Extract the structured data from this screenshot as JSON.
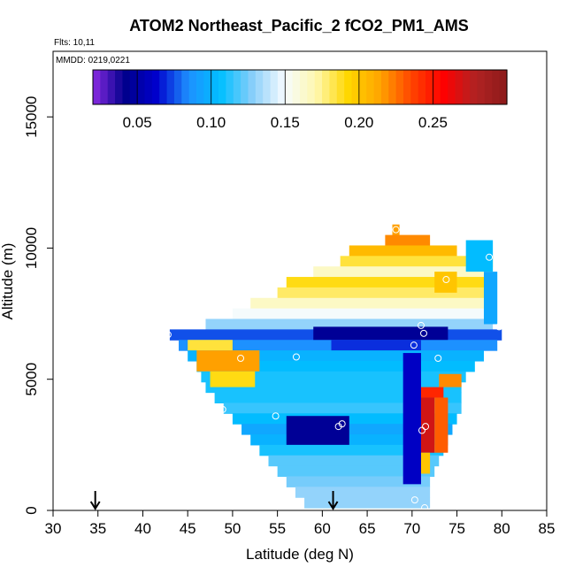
{
  "chart_data": {
    "type": "heatmap",
    "title": "ATOM2 Northeast_Pacific_2 fCO2_PM1_AMS",
    "flights_label": "Flts: 10,11",
    "dates_label": "MMDD: 0219,0221",
    "xlabel": "Latitude (deg N)",
    "ylabel": "Altitude (m)",
    "xlim": [
      30,
      85
    ],
    "ylim": [
      0,
      17500
    ],
    "xticks": [
      30,
      35,
      40,
      45,
      50,
      55,
      60,
      65,
      70,
      75,
      80,
      85
    ],
    "yticks": [
      0,
      5000,
      10000,
      15000
    ],
    "colorbar": {
      "min": 0.02,
      "max": 0.3,
      "ticks": [
        0.05,
        0.1,
        0.15,
        0.2,
        0.25
      ],
      "tick_labels": [
        "0.05",
        "0.10",
        "0.15",
        "0.20",
        "0.25"
      ],
      "colors": [
        "#8a2be2",
        "#00008b",
        "#0000cd",
        "#1e90ff",
        "#00bfff",
        "#87cefa",
        "#f5fbff",
        "#fff8b0",
        "#ffd700",
        "#ffa500",
        "#ff4500",
        "#ff0000",
        "#b22222",
        "#8b1a1a"
      ]
    },
    "arrows_latitude": [
      34.7,
      61.2
    ],
    "bands": [
      {
        "alt": 10700,
        "x0": 67.8,
        "x1": 68.6,
        "value": 0.215
      },
      {
        "alt": 10300,
        "x0": 67.0,
        "x1": 72.0,
        "value": 0.22
      },
      {
        "alt": 9900,
        "x0": 63.0,
        "x1": 75.0,
        "value": 0.205
      },
      {
        "alt": 9500,
        "x0": 62.0,
        "x1": 79.0,
        "value": 0.185
      },
      {
        "alt": 9100,
        "x0": 59.0,
        "x1": 79.0,
        "value": 0.165
      },
      {
        "alt": 8700,
        "x0": 56.0,
        "x1": 78.5,
        "value": 0.19
      },
      {
        "alt": 8300,
        "x0": 55.0,
        "x1": 78.5,
        "value": 0.18
      },
      {
        "alt": 7900,
        "x0": 52.0,
        "x1": 79.0,
        "value": 0.165
      },
      {
        "alt": 7500,
        "x0": 50.0,
        "x1": 79.0,
        "value": 0.15
      },
      {
        "alt": 7100,
        "x0": 47.0,
        "x1": 79.0,
        "value": 0.13
      },
      {
        "alt": 6700,
        "x0": 43.0,
        "x1": 80.0,
        "value": 0.075
      },
      {
        "alt": 6300,
        "x0": 44.0,
        "x1": 79.5,
        "value": 0.085
      },
      {
        "alt": 5900,
        "x0": 45.0,
        "x1": 78.0,
        "value": 0.1
      },
      {
        "alt": 5500,
        "x0": 46.0,
        "x1": 77.0,
        "value": 0.105
      },
      {
        "alt": 5100,
        "x0": 46.5,
        "x1": 76.0,
        "value": 0.11
      },
      {
        "alt": 4700,
        "x0": 47.0,
        "x1": 75.5,
        "value": 0.11
      },
      {
        "alt": 4300,
        "x0": 48.0,
        "x1": 75.5,
        "value": 0.11
      },
      {
        "alt": 3900,
        "x0": 49.0,
        "x1": 75.5,
        "value": 0.115
      },
      {
        "alt": 3500,
        "x0": 50.0,
        "x1": 75.0,
        "value": 0.105
      },
      {
        "alt": 3100,
        "x0": 51.0,
        "x1": 74.5,
        "value": 0.095
      },
      {
        "alt": 2700,
        "x0": 52.0,
        "x1": 74.0,
        "value": 0.1
      },
      {
        "alt": 2300,
        "x0": 53.0,
        "x1": 73.5,
        "value": 0.11
      },
      {
        "alt": 1900,
        "x0": 54.0,
        "x1": 73.0,
        "value": 0.12
      },
      {
        "alt": 1500,
        "x0": 55.0,
        "x1": 72.5,
        "value": 0.12
      },
      {
        "alt": 1100,
        "x0": 56.0,
        "x1": 72.0,
        "value": 0.125
      },
      {
        "alt": 700,
        "x0": 57.0,
        "x1": 72.0,
        "value": 0.13
      },
      {
        "alt": 300,
        "x0": 58.0,
        "x1": 72.0,
        "value": 0.13
      }
    ],
    "patches": [
      {
        "alt0": 5300,
        "alt1": 6100,
        "x0": 46.0,
        "x1": 53.0,
        "value": 0.215
      },
      {
        "alt0": 4700,
        "alt1": 5300,
        "x0": 47.5,
        "x1": 52.5,
        "value": 0.19
      },
      {
        "alt0": 6100,
        "alt1": 6500,
        "x0": 45.0,
        "x1": 50.0,
        "value": 0.185
      },
      {
        "alt0": 6500,
        "alt1": 7000,
        "x0": 59.0,
        "x1": 74.0,
        "value": 0.045
      },
      {
        "alt0": 6100,
        "alt1": 6500,
        "x0": 61.0,
        "x1": 71.0,
        "value": 0.07
      },
      {
        "alt0": 2500,
        "alt1": 3600,
        "x0": 56.0,
        "x1": 63.0,
        "value": 0.045
      },
      {
        "alt0": 4700,
        "alt1": 5200,
        "x0": 73.0,
        "x1": 75.5,
        "value": 0.22
      },
      {
        "alt0": 4300,
        "alt1": 4700,
        "x0": 71.0,
        "x1": 73.5,
        "value": 0.245
      },
      {
        "alt0": 2200,
        "alt1": 4300,
        "x0": 71.0,
        "x1": 72.5,
        "value": 0.27
      },
      {
        "alt0": 2200,
        "alt1": 4300,
        "x0": 72.5,
        "x1": 74.0,
        "value": 0.23
      },
      {
        "alt0": 1400,
        "alt1": 2200,
        "x0": 70.5,
        "x1": 72.0,
        "value": 0.2
      },
      {
        "alt0": 1000,
        "alt1": 6000,
        "x0": 69.0,
        "x1": 71.0,
        "value": 0.06
      },
      {
        "alt0": 8300,
        "alt1": 9100,
        "x0": 72.5,
        "x1": 75.0,
        "value": 0.2
      },
      {
        "alt0": 9100,
        "alt1": 10300,
        "x0": 76.0,
        "x1": 79.0,
        "value": 0.105
      },
      {
        "alt0": 7100,
        "alt1": 9100,
        "x0": 78.0,
        "x1": 79.5,
        "value": 0.095
      }
    ],
    "points": [
      {
        "lat": 42.8,
        "alt": 6700
      },
      {
        "lat": 50.9,
        "alt": 5800
      },
      {
        "lat": 57.1,
        "alt": 5850
      },
      {
        "lat": 48.9,
        "alt": 3850
      },
      {
        "lat": 54.8,
        "alt": 3600
      },
      {
        "lat": 61.8,
        "alt": 3200
      },
      {
        "lat": 62.2,
        "alt": 3300
      },
      {
        "lat": 70.2,
        "alt": 6300
      },
      {
        "lat": 71.0,
        "alt": 7050
      },
      {
        "lat": 71.3,
        "alt": 6750
      },
      {
        "lat": 72.9,
        "alt": 5800
      },
      {
        "lat": 71.1,
        "alt": 3050
      },
      {
        "lat": 71.5,
        "alt": 3200
      },
      {
        "lat": 70.3,
        "alt": 400
      },
      {
        "lat": 71.4,
        "alt": 100
      },
      {
        "lat": 68.2,
        "alt": 10700
      },
      {
        "lat": 73.8,
        "alt": 8800
      },
      {
        "lat": 78.6,
        "alt": 9650
      },
      {
        "lat": 79.7,
        "alt": 7000
      }
    ]
  }
}
